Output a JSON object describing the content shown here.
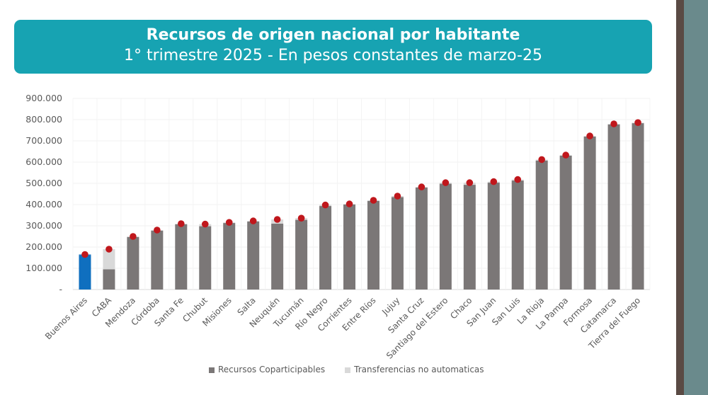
{
  "header": {
    "title": "Recursos de origen nacional por habitante",
    "subtitle": "1° trimestre 2025 - En pesos constantes de marzo-25"
  },
  "chart_data": {
    "type": "bar",
    "stacked": true,
    "title": "Recursos de origen nacional por habitante",
    "subtitle": "1° trimestre 2025 - En pesos constantes de marzo-25",
    "xlabel": "",
    "ylabel": "",
    "ylim": [
      0,
      900000
    ],
    "yticks": [
      0,
      100000,
      200000,
      300000,
      400000,
      500000,
      600000,
      700000,
      800000,
      900000
    ],
    "ytick_labels": [
      "-",
      "100.000",
      "200.000",
      "300.000",
      "400.000",
      "500.000",
      "600.000",
      "700.000",
      "800.000",
      "900.000"
    ],
    "grid": true,
    "legend_position": "bottom",
    "categories": [
      "Buenos Aires",
      "CABA",
      "Mendoza",
      "Córdoba",
      "Santa Fe",
      "Chubut",
      "Misiones",
      "Salta",
      "Neuquén",
      "Tucumán",
      "Río Negro",
      "Corrientes",
      "Entre Ríos",
      "Jujuy",
      "Santa Cruz",
      "Santiago del Estero",
      "Chaco",
      "San Juan",
      "San Luis",
      "La Rioja",
      "La Pampa",
      "Formosa",
      "Catamarca",
      "Tierra del Fuego"
    ],
    "series": [
      {
        "name": "Recursos Coparticipables",
        "color": "#7b7777",
        "values": [
          162000,
          95000,
          247000,
          277000,
          307000,
          298000,
          313000,
          320000,
          310000,
          328000,
          393000,
          400000,
          417000,
          435000,
          480000,
          498000,
          493000,
          503000,
          513000,
          607000,
          630000,
          720000,
          777000,
          783000
        ]
      },
      {
        "name": "Transferencias no automaticas",
        "color": "#d9d9d9",
        "values": [
          3000,
          95000,
          3000,
          3000,
          3000,
          10000,
          3000,
          3000,
          20000,
          8000,
          5000,
          3000,
          3000,
          5000,
          3000,
          5000,
          10000,
          5000,
          5000,
          5000,
          3000,
          3000,
          3000,
          3000
        ]
      }
    ],
    "totals_marker": {
      "color": "#c0171c",
      "values": [
        165000,
        190000,
        250000,
        280000,
        310000,
        308000,
        316000,
        323000,
        330000,
        336000,
        398000,
        403000,
        420000,
        440000,
        483000,
        503000,
        503000,
        508000,
        518000,
        612000,
        633000,
        723000,
        780000,
        786000
      ]
    },
    "highlight": {
      "category": "Buenos Aires",
      "color": "#0f6fbf"
    }
  }
}
